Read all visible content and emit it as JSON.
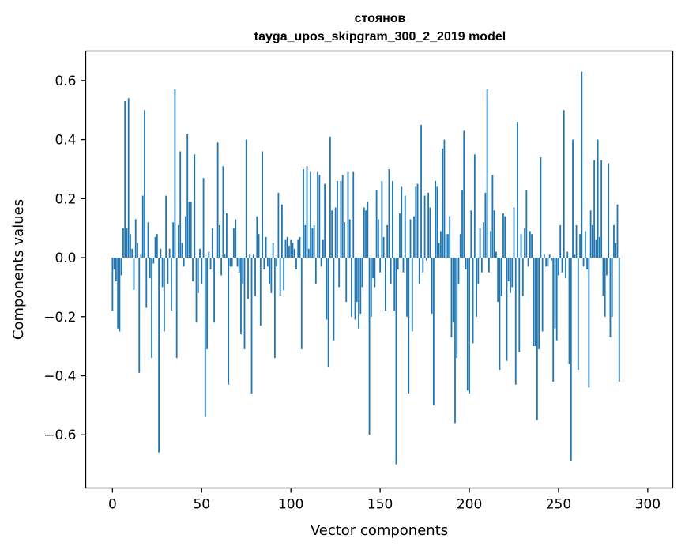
{
  "chart_data": {
    "type": "bar",
    "title": "стоянов",
    "subtitle": "tayga_upos_skipgram_300_2_2019 model",
    "xlabel": "Vector components",
    "ylabel": "Components values",
    "xlim": [
      -15,
      314
    ],
    "ylim": [
      -0.78,
      0.7
    ],
    "xticks": [
      0,
      50,
      100,
      150,
      200,
      250,
      300
    ],
    "xtick_labels": [
      "0",
      "50",
      "100",
      "150",
      "200",
      "250",
      "300"
    ],
    "yticks": [
      -0.6,
      -0.4,
      -0.2,
      0.0,
      0.2,
      0.4,
      0.6
    ],
    "ytick_labels": [
      "−0.6",
      "−0.4",
      "−0.2",
      "0.0",
      "0.2",
      "0.4",
      "0.6"
    ],
    "grid": false,
    "bar_color": "#1f77b4",
    "x_start": 0,
    "values": [
      -0.18,
      -0.04,
      -0.08,
      -0.24,
      -0.25,
      -0.06,
      0.1,
      0.53,
      0.1,
      0.54,
      0.08,
      0.03,
      -0.11,
      0.13,
      0.05,
      -0.39,
      0.01,
      0.21,
      0.5,
      -0.17,
      0.12,
      -0.07,
      -0.34,
      -0.02,
      0.07,
      0.08,
      -0.66,
      0.03,
      -0.1,
      -0.25,
      0.21,
      -0.09,
      0.03,
      -0.18,
      0.12,
      0.57,
      -0.34,
      0.11,
      0.36,
      0.05,
      -0.03,
      0.14,
      0.42,
      0.19,
      0.19,
      -0.08,
      0.35,
      -0.22,
      -0.12,
      0.03,
      -0.09,
      0.27,
      -0.54,
      -0.31,
      0.02,
      -0.04,
      0.1,
      -0.22,
      0.0,
      0.39,
      0.11,
      -0.06,
      0.31,
      0.01,
      0.15,
      -0.43,
      -0.03,
      -0.03,
      0.1,
      0.13,
      -0.03,
      -0.05,
      -0.26,
      -0.09,
      -0.31,
      0.4,
      -0.14,
      0.01,
      -0.46,
      0.01,
      -0.13,
      0.14,
      0.08,
      -0.23,
      0.36,
      -0.04,
      0.07,
      -0.03,
      -0.09,
      -0.12,
      0.05,
      -0.34,
      -0.03,
      0.22,
      -0.13,
      0.18,
      -0.11,
      0.06,
      0.07,
      0.04,
      0.06,
      0.05,
      0.03,
      -0.04,
      0.06,
      0.07,
      -0.31,
      0.3,
      0.11,
      0.31,
      0.03,
      0.29,
      0.1,
      0.11,
      -0.09,
      0.29,
      0.28,
      -0.03,
      0.06,
      0.25,
      -0.21,
      -0.37,
      0.41,
      0.16,
      -0.28,
      0.17,
      0.26,
      -0.1,
      0.26,
      0.28,
      0.12,
      -0.15,
      0.29,
      0.13,
      -0.2,
      0.29,
      -0.21,
      -0.15,
      -0.24,
      -0.19,
      -0.1,
      0.17,
      0.16,
      0.19,
      -0.6,
      -0.2,
      -0.07,
      -0.1,
      0.23,
      0.13,
      -0.05,
      0.26,
      0.07,
      -0.18,
      0.11,
      0.3,
      -0.09,
      0.26,
      -0.18,
      -0.7,
      -0.04,
      0.15,
      0.24,
      -0.05,
      0.21,
      -0.2,
      -0.46,
      0.13,
      -0.25,
      0.14,
      0.24,
      0.25,
      -0.09,
      0.45,
      -0.05,
      0.21,
      -0.01,
      0.22,
      0.17,
      -0.19,
      -0.5,
      0.26,
      0.24,
      0.05,
      0.09,
      0.37,
      0.4,
      0.08,
      0.08,
      0.14,
      -0.27,
      -0.22,
      -0.56,
      -0.34,
      -0.09,
      0.08,
      0.23,
      0.43,
      -0.04,
      -0.45,
      -0.46,
      0.16,
      -0.29,
      0.35,
      -0.2,
      -0.09,
      0.1,
      -0.05,
      0.12,
      0.22,
      0.57,
      -0.05,
      0.09,
      0.28,
      0.16,
      0.02,
      -0.15,
      -0.38,
      -0.13,
      0.15,
      0.14,
      -0.35,
      -0.08,
      -0.12,
      -0.1,
      0.17,
      -0.43,
      0.46,
      -0.32,
      0.08,
      -0.13,
      0.1,
      0.23,
      -0.03,
      0.09,
      0.08,
      -0.3,
      -0.3,
      -0.55,
      -0.31,
      0.34,
      -0.25,
      0.01,
      -0.03,
      -0.03,
      0.01,
      -0.01,
      -0.42,
      -0.24,
      -0.28,
      -0.06,
      0.11,
      -0.05,
      0.5,
      -0.07,
      0.02,
      -0.36,
      -0.69,
      0.4,
      0.01,
      0.11,
      -0.38,
      0.08,
      0.63,
      -0.03,
      0.09,
      -0.04,
      -0.44,
      0.16,
      0.11,
      0.33,
      0.06,
      0.4,
      0.07,
      0.33,
      -0.13,
      -0.2,
      -0.06,
      0.32,
      -0.27,
      -0.2,
      0.11,
      0.05,
      0.18,
      -0.42
    ]
  }
}
